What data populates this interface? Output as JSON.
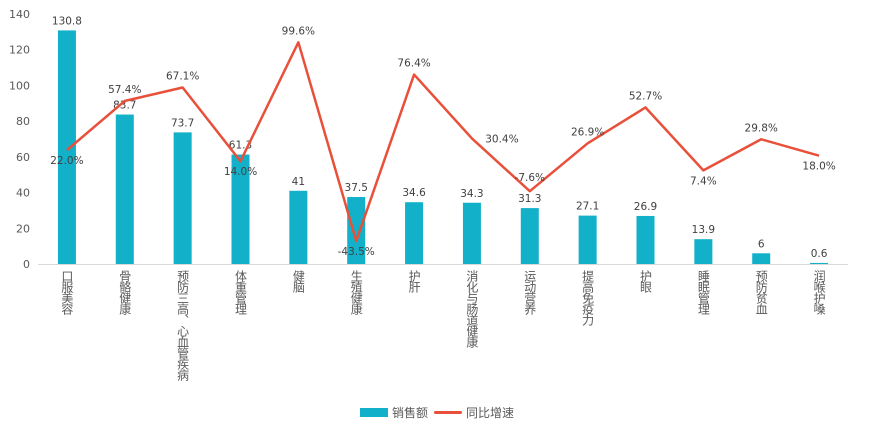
{
  "chart_data": {
    "type": "bar",
    "title": "",
    "categories": [
      "口服美容",
      "骨骼健康",
      "预防三高、心血管疾病",
      "体重管理",
      "健脑",
      "生殖健康",
      "护肝",
      "消化与肠道健康",
      "运动营养",
      "提高免疫力",
      "护眼",
      "睡眠管理",
      "预防贫血",
      "润喉护嗓"
    ],
    "series": [
      {
        "name": "销售额",
        "type": "bar",
        "color": "#12b0c9",
        "values": [
          130.8,
          83.7,
          73.7,
          61.3,
          41,
          37.5,
          34.6,
          34.3,
          31.3,
          27.1,
          26.9,
          13.9,
          6,
          0.6
        ]
      },
      {
        "name": "同比增速",
        "type": "line",
        "color": "#e8503a",
        "axis": "secondary",
        "unit": "%",
        "values": [
          22.0,
          57.4,
          67.1,
          14.0,
          99.6,
          -43.5,
          76.4,
          30.4,
          -7.6,
          26.9,
          52.7,
          7.4,
          29.8,
          18.0
        ]
      }
    ],
    "ylim": [
      0,
      140
    ],
    "yticks": [
      0,
      20,
      40,
      60,
      80,
      100,
      120,
      140
    ],
    "y2lim": [
      -60,
      120
    ],
    "grid": false,
    "legend": "bottom"
  }
}
